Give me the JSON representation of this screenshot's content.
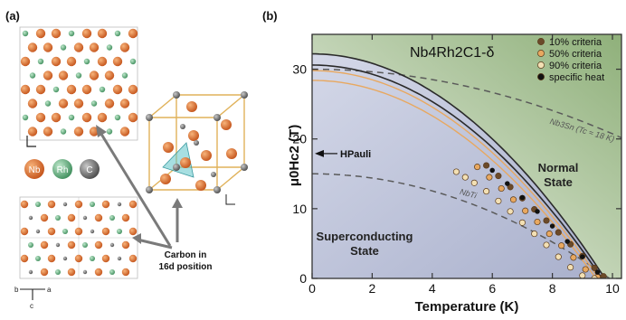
{
  "panel_a": {
    "label": "(a)",
    "legend": [
      {
        "symbol": "Nb",
        "color": "#d9661f"
      },
      {
        "symbol": "Rh",
        "color": "#5fae7c"
      },
      {
        "symbol": "C",
        "color": "#6a6a6a"
      }
    ],
    "annotation_line1": "Carbon in",
    "annotation_line2": "16d position",
    "axis_b": "b",
    "axis_a": "a",
    "axis_c": "c"
  },
  "panel_b": {
    "label": "(b)"
  },
  "colors": {
    "nb": "#d9661f",
    "rh": "#5fae7c",
    "c": "#6a6a6a",
    "orange": "#e8a860",
    "dark_line": "#2a2a2a",
    "dash": "#5a5a5a",
    "sc_region": "#b9bfd6",
    "normal_region": "#9fb98a"
  },
  "chart_data": {
    "type": "scatter",
    "title": "Nb4Rh2C1-δ",
    "xlabel": "Temperature (K)",
    "ylabel": "μ0Hc2 (T)",
    "xlim": [
      0,
      10.3
    ],
    "ylim": [
      0,
      35
    ],
    "x_ticks": [
      "0",
      "2",
      "4",
      "6",
      "8",
      "10"
    ],
    "y_ticks": [
      "0",
      "10",
      "20",
      "30"
    ],
    "grid": false,
    "legend_position": "top-right",
    "regions": {
      "superconducting": "Superconducting State",
      "normal": "Normal State"
    },
    "series": [
      {
        "name": "10% criteria",
        "marker": "#6b4a2a",
        "x": [
          5.8,
          6.2,
          6.6,
          7.0,
          7.4,
          7.8,
          8.2,
          8.6,
          9.0,
          9.4,
          9.7
        ],
        "y": [
          16.2,
          14.7,
          13.1,
          11.5,
          9.9,
          8.3,
          6.6,
          4.9,
          3.2,
          1.5,
          0.3
        ]
      },
      {
        "name": "50% criteria",
        "marker": "#e8a860",
        "x": [
          5.5,
          5.9,
          6.3,
          6.7,
          7.1,
          7.5,
          7.9,
          8.3,
          8.7,
          9.1,
          9.5
        ],
        "y": [
          16.0,
          14.5,
          12.9,
          11.3,
          9.7,
          8.1,
          6.4,
          4.7,
          3.0,
          1.3,
          0.2
        ]
      },
      {
        "name": "90% criteria",
        "marker": "#f3e0b4",
        "x": [
          4.8,
          5.1,
          5.4,
          5.8,
          6.2,
          6.6,
          7.0,
          7.4,
          7.8,
          8.2,
          8.6,
          9.0,
          9.4
        ],
        "y": [
          15.3,
          14.5,
          13.7,
          12.5,
          11.1,
          9.6,
          8.0,
          6.4,
          4.8,
          3.1,
          1.6,
          0.4,
          0.0
        ]
      },
      {
        "name": "specific heat",
        "marker": "#111111",
        "x": [
          6.0,
          6.5,
          7.0,
          7.5,
          8.0,
          8.5,
          9.0,
          9.5
        ],
        "y": [
          15.5,
          13.6,
          11.6,
          9.6,
          7.5,
          5.3,
          3.1,
          0.9
        ]
      }
    ],
    "fit_curves": [
      {
        "color": "dark",
        "hc2_0": 32.2,
        "tc": 9.75
      },
      {
        "color": "dark",
        "hc2_0": 30.6,
        "tc": 9.65
      },
      {
        "color": "orange",
        "hc2_0": 29.8,
        "tc": 9.55
      },
      {
        "color": "orange",
        "hc2_0": 28.4,
        "tc": 9.45
      }
    ],
    "reference_curves": [
      {
        "name": "Nb3Sn (Tc ≈ 18 K)",
        "hc2_0": 30.0,
        "tc": 18.0
      },
      {
        "name": "NbTi",
        "hc2_0": 15.0,
        "tc": 9.9
      }
    ],
    "annotations": {
      "pauli_label": "HPauli",
      "pauli_value": 17.9
    }
  }
}
